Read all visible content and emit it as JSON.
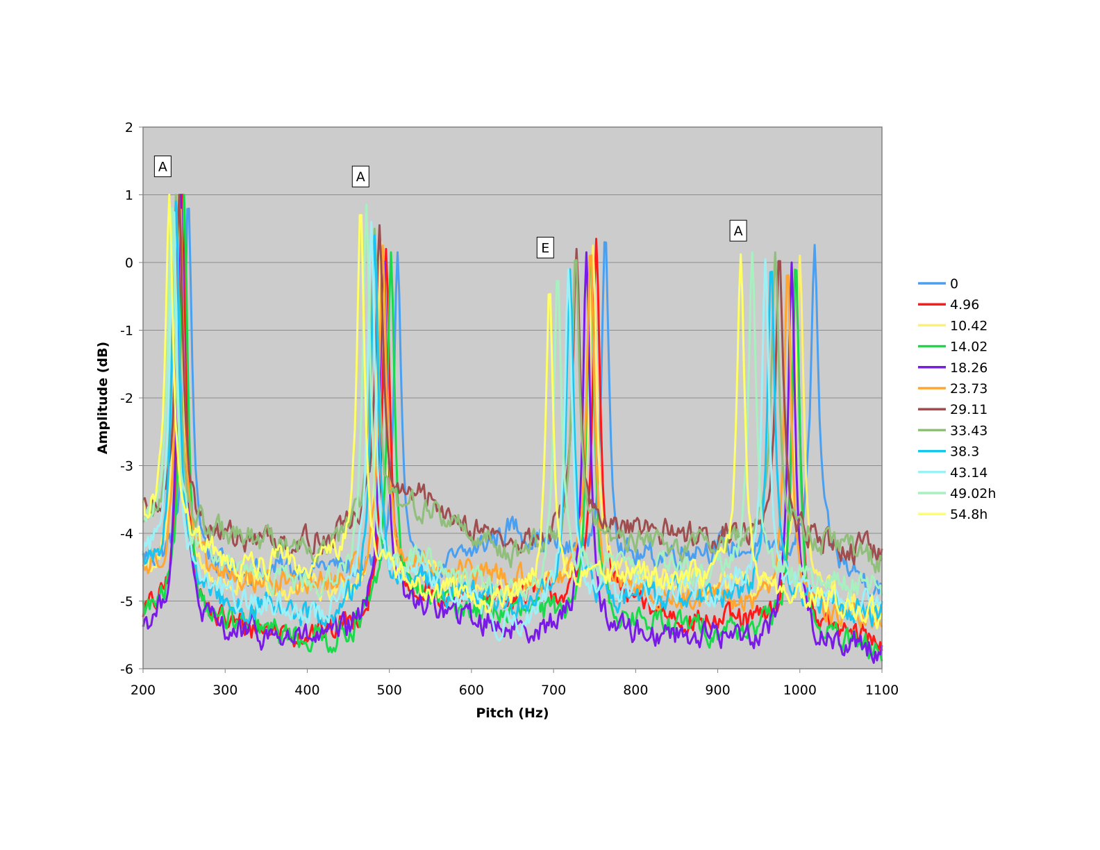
{
  "chart_data": {
    "type": "line",
    "title": "",
    "xlabel": "Pitch (Hz)",
    "ylabel": "Amplitude (dB)",
    "xlim": [
      200,
      1100
    ],
    "ylim": [
      -6,
      2
    ],
    "xticks": [
      "200",
      "300",
      "400",
      "500",
      "600",
      "700",
      "800",
      "900",
      "1000",
      "1100"
    ],
    "yticks": [
      "2",
      "1",
      "0",
      "-1",
      "-2",
      "-3",
      "-4",
      "-5",
      "-6"
    ],
    "grid": "horizontal",
    "plot_background": "#cccccc",
    "legend_position": "right",
    "annotations": [
      {
        "label": "A",
        "x": 224,
        "y": 1.42
      },
      {
        "label": "A",
        "x": 465,
        "y": 1.27
      },
      {
        "label": "E",
        "x": 690,
        "y": 0.22
      },
      {
        "label": "A",
        "x": 925,
        "y": 0.47
      }
    ],
    "series": [
      {
        "name": "0",
        "color": "#4a9ff0",
        "peaks": [
          {
            "x": 255,
            "y": 1.0
          },
          {
            "x": 510,
            "y": 0.15
          },
          {
            "x": 763,
            "y": 0.48
          },
          {
            "x": 1018,
            "y": 0.26
          }
        ],
        "baseline": [
          -4.4,
          -4.6,
          -4.5,
          -4.8,
          -3.9,
          -4.6,
          -4.2,
          -4.3,
          -4.8
        ]
      },
      {
        "name": "4.96",
        "color": "#ff1a1a",
        "peaks": [
          {
            "x": 248,
            "y": 1.0
          },
          {
            "x": 496,
            "y": 0.2
          },
          {
            "x": 752,
            "y": 0.35
          },
          {
            "x": 995,
            "y": 0.05
          }
        ],
        "baseline": [
          -5.2,
          -5.4,
          -5.5,
          -5.0,
          -4.9,
          -5.0,
          -5.3,
          -5.4,
          -5.6
        ]
      },
      {
        "name": "10.42",
        "color": "#fff170",
        "peaks": [
          {
            "x": 244,
            "y": 1.0
          },
          {
            "x": 490,
            "y": 0.3
          },
          {
            "x": 748,
            "y": 0.25
          },
          {
            "x": 1000,
            "y": 0.1
          }
        ],
        "baseline": [
          -4.6,
          -4.8,
          -4.9,
          -4.7,
          -4.8,
          -4.7,
          -4.8,
          -4.9,
          -5.1
        ]
      },
      {
        "name": "14.02",
        "color": "#1ad94a",
        "peaks": [
          {
            "x": 250,
            "y": 1.0
          },
          {
            "x": 502,
            "y": 0.15
          },
          {
            "x": 745,
            "y": 0.22
          },
          {
            "x": 995,
            "y": 0.1
          }
        ],
        "baseline": [
          -5.2,
          -5.4,
          -5.6,
          -5.0,
          -5.2,
          -5.3,
          -5.4,
          -5.5,
          -5.8
        ]
      },
      {
        "name": "18.26",
        "color": "#7a1ae6",
        "peaks": [
          {
            "x": 246,
            "y": 1.0
          },
          {
            "x": 493,
            "y": 0.22
          },
          {
            "x": 740,
            "y": 0.15
          },
          {
            "x": 990,
            "y": 0.0
          }
        ],
        "baseline": [
          -5.4,
          -5.5,
          -5.6,
          -5.1,
          -5.4,
          -5.5,
          -5.5,
          -5.6,
          -5.7
        ]
      },
      {
        "name": "23.73",
        "color": "#ffa530",
        "peaks": [
          {
            "x": 245,
            "y": 1.0
          },
          {
            "x": 492,
            "y": 0.25
          },
          {
            "x": 745,
            "y": 0.3
          },
          {
            "x": 985,
            "y": 0.0
          }
        ],
        "baseline": [
          -4.6,
          -4.7,
          -4.8,
          -4.5,
          -4.7,
          -4.9,
          -5.0,
          -5.1,
          -5.3
        ]
      },
      {
        "name": "29.11",
        "color": "#9e4e4e",
        "peaks": [
          {
            "x": 244,
            "y": 1.0
          },
          {
            "x": 488,
            "y": 0.55
          },
          {
            "x": 728,
            "y": 0.2
          },
          {
            "x": 975,
            "y": 0.18
          }
        ],
        "baseline": [
          -3.8,
          -4.1,
          -4.1,
          -3.5,
          -4.2,
          -4.0,
          -4.0,
          -4.1,
          -4.3
        ]
      },
      {
        "name": "33.43",
        "color": "#8fbf7a",
        "peaks": [
          {
            "x": 240,
            "y": 1.0
          },
          {
            "x": 482,
            "y": 0.5
          },
          {
            "x": 727,
            "y": 0.2
          },
          {
            "x": 970,
            "y": 0.15
          }
        ],
        "baseline": [
          -3.9,
          -4.1,
          -4.2,
          -3.6,
          -4.3,
          -4.1,
          -4.2,
          -4.0,
          -4.4
        ]
      },
      {
        "name": "38.3",
        "color": "#1ac4f0",
        "peaks": [
          {
            "x": 240,
            "y": 0.9
          },
          {
            "x": 482,
            "y": 0.4
          },
          {
            "x": 720,
            "y": -0.1
          },
          {
            "x": 965,
            "y": 0.05
          }
        ],
        "baseline": [
          -4.5,
          -5.1,
          -5.3,
          -4.7,
          -5.1,
          -5.0,
          -4.9,
          -5.0,
          -5.2
        ]
      },
      {
        "name": "43.14",
        "color": "#9ef0f7",
        "peaks": [
          {
            "x": 237,
            "y": 0.95
          },
          {
            "x": 478,
            "y": 0.6
          },
          {
            "x": 718,
            "y": -0.1
          },
          {
            "x": 958,
            "y": 0.05
          }
        ],
        "baseline": [
          -4.3,
          -5.0,
          -5.2,
          -4.6,
          -5.4,
          -4.9,
          -4.8,
          -4.9,
          -5.1
        ]
      },
      {
        "name": "49.02h",
        "color": "#a8f0c0",
        "peaks": [
          {
            "x": 235,
            "y": 1.0
          },
          {
            "x": 472,
            "y": 0.85
          },
          {
            "x": 705,
            "y": -0.1
          },
          {
            "x": 942,
            "y": 0.15
          }
        ],
        "baseline": [
          -3.9,
          -4.6,
          -4.8,
          -4.4,
          -5.0,
          -4.5,
          -4.6,
          -4.7,
          -4.8
        ]
      },
      {
        "name": "54.8h",
        "color": "#ffff66",
        "peaks": [
          {
            "x": 232,
            "y": 1.0
          },
          {
            "x": 465,
            "y": 0.9
          },
          {
            "x": 695,
            "y": -0.3
          },
          {
            "x": 928,
            "y": 0.12
          }
        ],
        "baseline": [
          -3.8,
          -4.5,
          -4.4,
          -4.8,
          -5.1,
          -4.6,
          -4.7,
          -4.9,
          -5.2
        ]
      }
    ]
  }
}
